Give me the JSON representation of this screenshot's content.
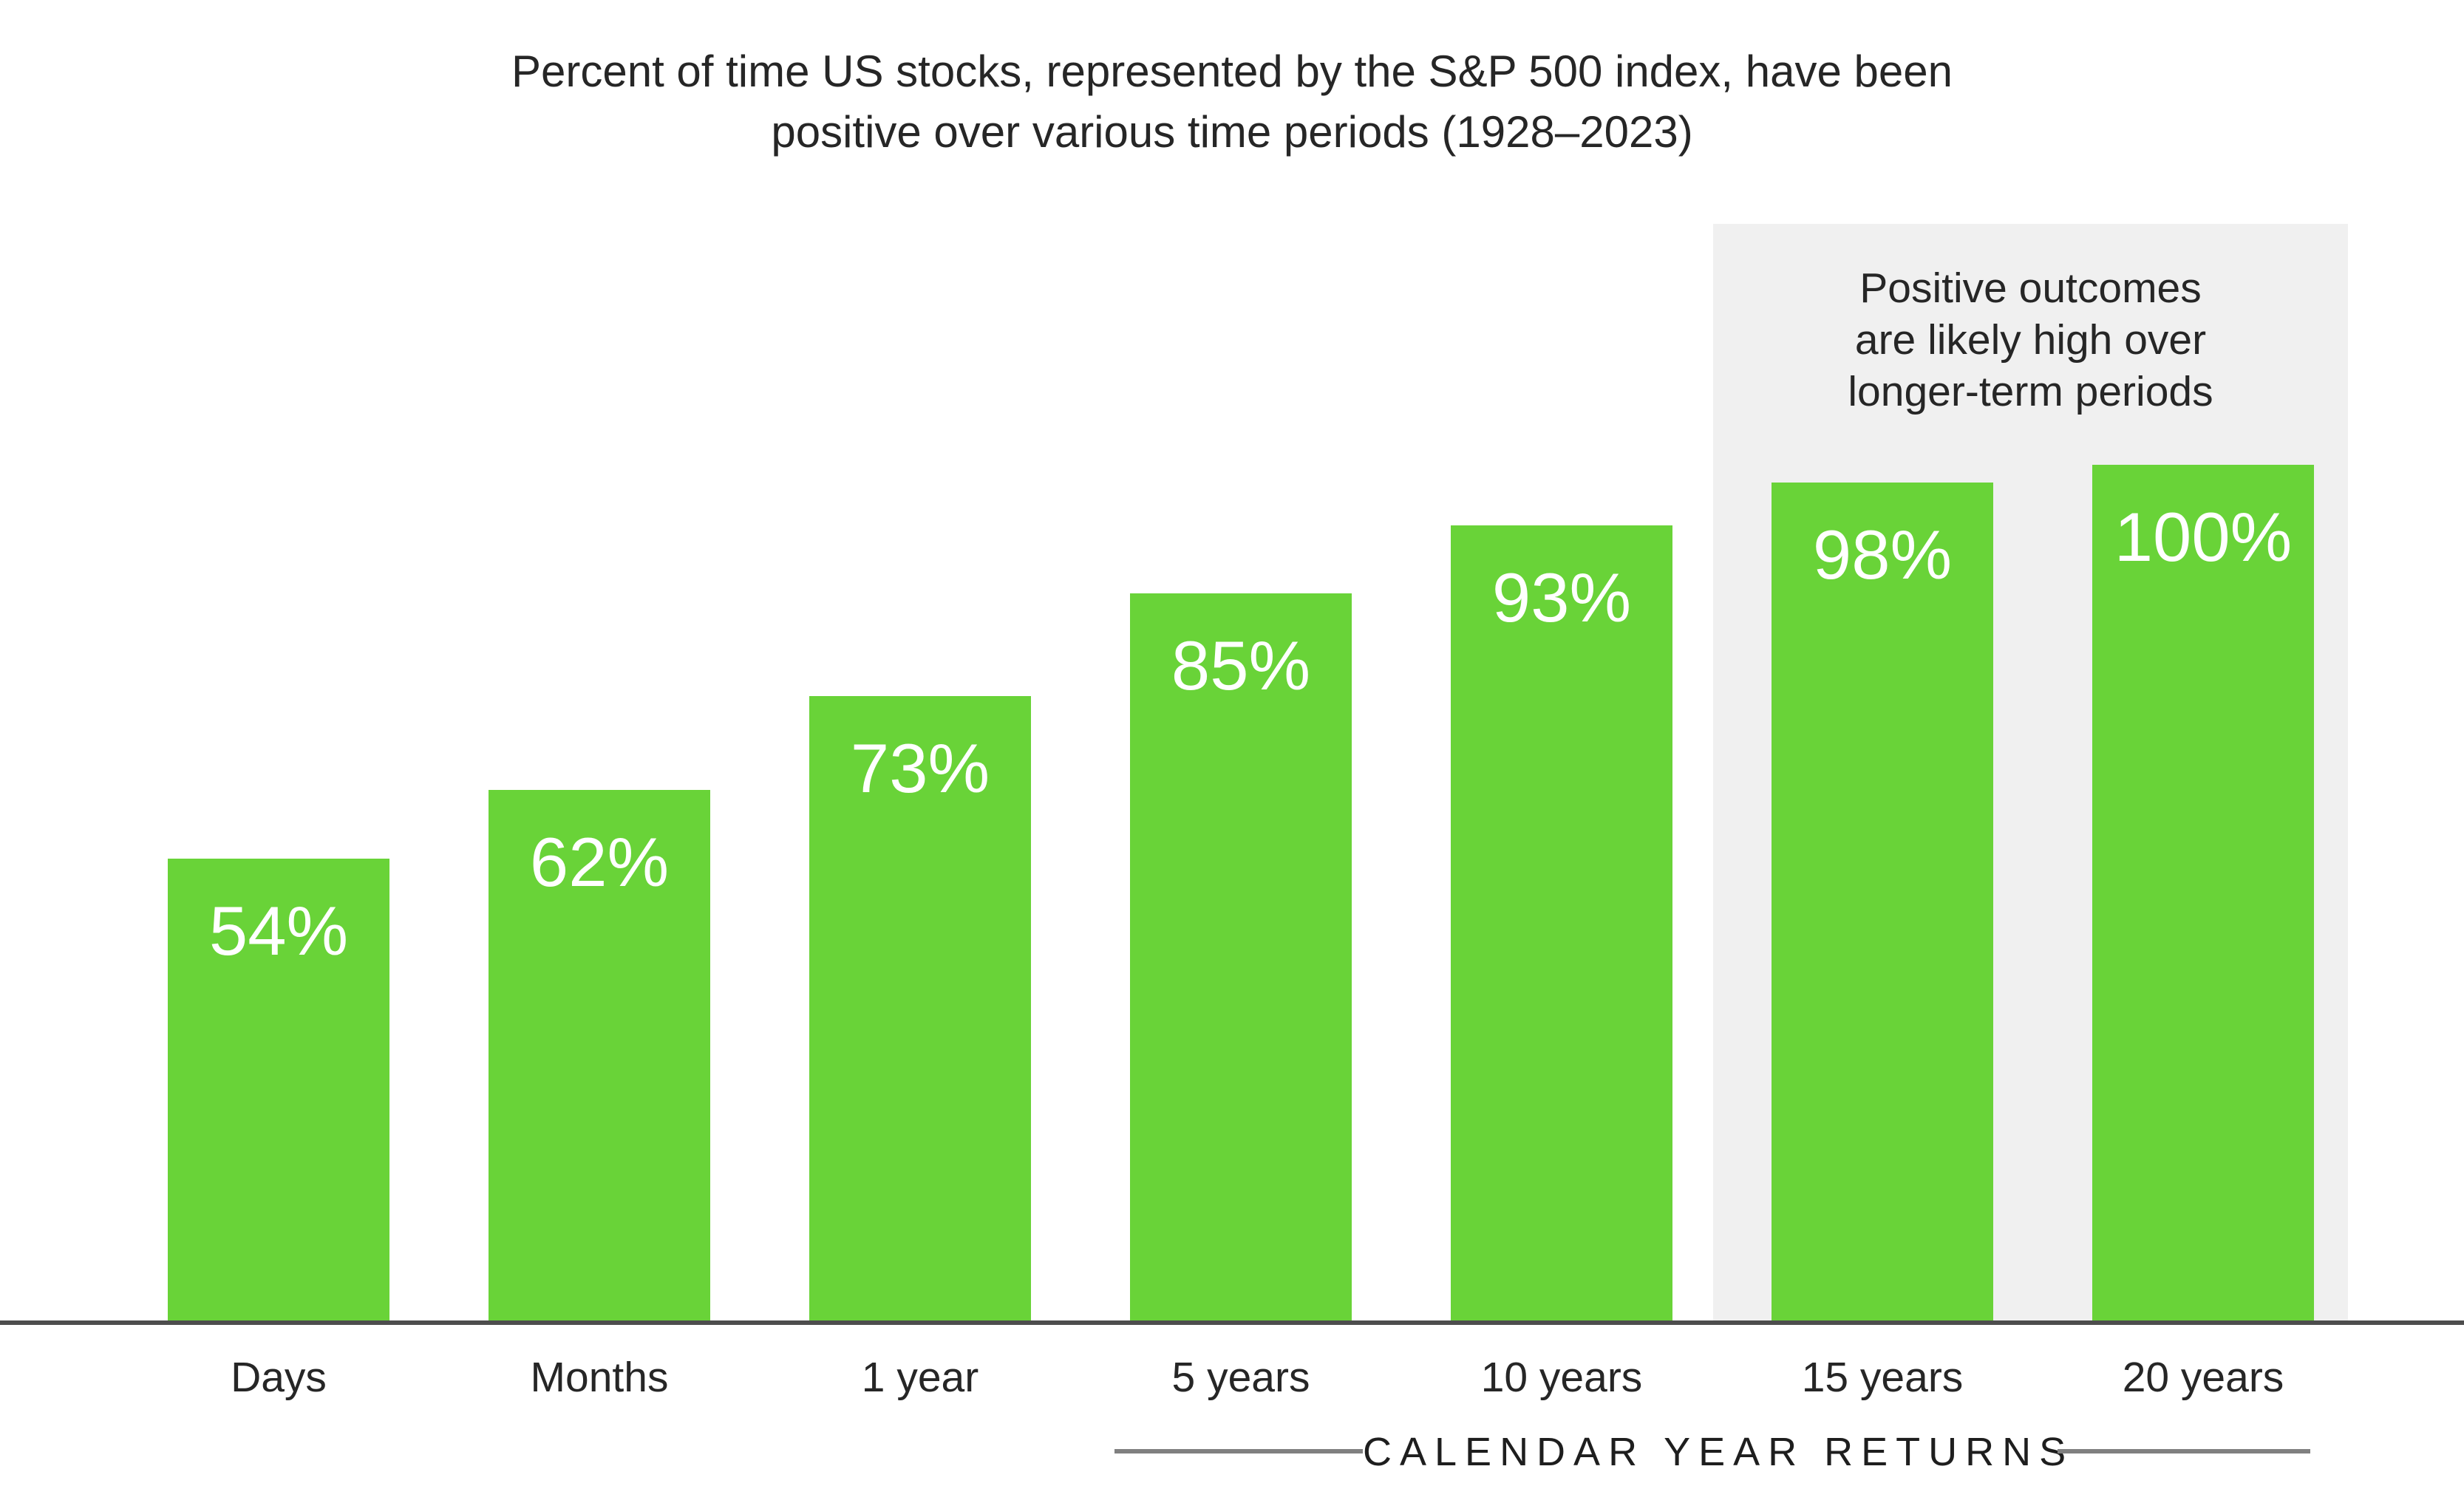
{
  "title": {
    "line1": "Percent of time US stocks, represented by the S&P 500 index, have been",
    "line2": "positive over various time periods (1928–2023)"
  },
  "annotation": {
    "line1": "Positive outcomes",
    "line2": "are likely high over",
    "line3": "longer-term periods"
  },
  "footer": {
    "label": "CALENDAR YEAR RETURNS"
  },
  "chart_data": {
    "type": "bar",
    "title": "Percent of time US stocks, represented by the S&P 500 index, have been positive over various time periods (1928–2023)",
    "categories": [
      "Days",
      "Months",
      "1 year",
      "5 years",
      "10 years",
      "15 years",
      "20 years"
    ],
    "values": [
      54,
      62,
      73,
      85,
      93,
      98,
      100
    ],
    "value_labels": [
      "54%",
      "62%",
      "73%",
      "85%",
      "93%",
      "98%",
      "100%"
    ],
    "xlabel": "CALENDAR YEAR RETURNS",
    "ylabel": "",
    "ylim": [
      0,
      100
    ],
    "grid": false,
    "legend": "none",
    "annotation": "Positive outcomes are likely high over longer-term periods",
    "highlighted_categories": [
      "15 years",
      "20 years"
    ],
    "bar_color": "#69d338",
    "highlight_background": "#f0f0f0",
    "axis_line_color": "#4d4d4d",
    "value_label_color": "#ffffff"
  }
}
